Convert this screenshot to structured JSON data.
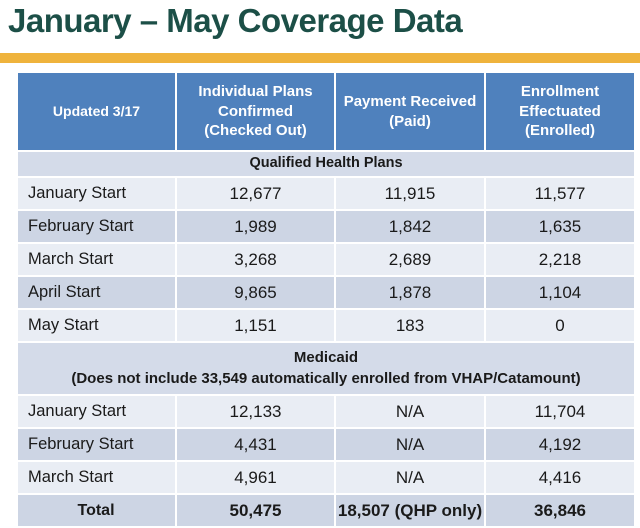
{
  "title": "January – May Coverage Data",
  "colors": {
    "title_color": "#1c4f47",
    "accent_bar": "#efb33c",
    "header_bg": "#4f81bd",
    "band_dark": "#cdd5e4",
    "band_light": "#e9edf4",
    "section_bg": "#d4dbe9"
  },
  "table": {
    "header": {
      "updated": "Updated 3/17",
      "confirmed": "Individual Plans Confirmed (Checked Out)",
      "paid": "Payment Received (Paid)",
      "enrolled": "Enrollment Effectuated (Enrolled)"
    },
    "qhp_section": "Qualified Health Plans",
    "qhp_rows": [
      {
        "label": "January Start",
        "confirmed": "12,677",
        "paid": "11,915",
        "enrolled": "11,577"
      },
      {
        "label": "February Start",
        "confirmed": "1,989",
        "paid": "1,842",
        "enrolled": "1,635"
      },
      {
        "label": "March Start",
        "confirmed": "3,268",
        "paid": "2,689",
        "enrolled": "2,218"
      },
      {
        "label": "April Start",
        "confirmed": "9,865",
        "paid": "1,878",
        "enrolled": "1,104"
      },
      {
        "label": "May Start",
        "confirmed": "1,151",
        "paid": "183",
        "enrolled": "0"
      }
    ],
    "medicaid_section_line1": "Medicaid",
    "medicaid_section_line2": "(Does not include 33,549 automatically enrolled from VHAP/Catamount)",
    "medicaid_rows": [
      {
        "label": "January Start",
        "confirmed": "12,133",
        "paid": "N/A",
        "enrolled": "11,704"
      },
      {
        "label": "February Start",
        "confirmed": "4,431",
        "paid": "N/A",
        "enrolled": "4,192"
      },
      {
        "label": "March Start",
        "confirmed": "4,961",
        "paid": "N/A",
        "enrolled": "4,416"
      }
    ],
    "total_row": {
      "label": "Total",
      "confirmed": "50,475",
      "paid": "18,507 (QHP only)",
      "enrolled": "36,846"
    }
  },
  "chart_data": {
    "type": "table",
    "title": "January – May Coverage Data",
    "columns": [
      "Updated 3/17",
      "Individual Plans Confirmed (Checked Out)",
      "Payment Received (Paid)",
      "Enrollment Effectuated (Enrolled)"
    ],
    "sections": [
      {
        "name": "Qualified Health Plans",
        "rows": [
          [
            "January Start",
            12677,
            11915,
            11577
          ],
          [
            "February Start",
            1989,
            1842,
            1635
          ],
          [
            "March Start",
            3268,
            2689,
            2218
          ],
          [
            "April Start",
            9865,
            1878,
            1104
          ],
          [
            "May Start",
            1151,
            183,
            0
          ]
        ]
      },
      {
        "name": "Medicaid (Does not include 33,549 automatically enrolled from VHAP/Catamount)",
        "rows": [
          [
            "January Start",
            12133,
            "N/A",
            11704
          ],
          [
            "February Start",
            4431,
            "N/A",
            4192
          ],
          [
            "March Start",
            4961,
            "N/A",
            4416
          ]
        ]
      }
    ],
    "total": [
      "Total",
      50475,
      "18,507 (QHP only)",
      36846
    ]
  }
}
